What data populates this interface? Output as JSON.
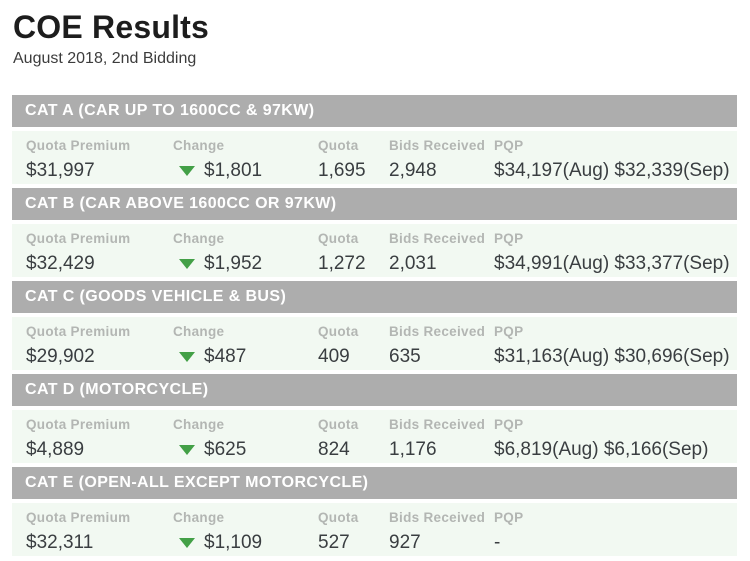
{
  "page": {
    "title": "COE Results",
    "subtitle": "August 2018, 2nd Bidding"
  },
  "columns": {
    "quota_premium": "Quota Premium",
    "change": "Change",
    "quota": "Quota",
    "bids_received": "Bids Received",
    "pqp": "PQP"
  },
  "colors": {
    "section_header_bg": "#adadad",
    "section_header_text": "#ffffff",
    "row_bg": "#f2f9f2",
    "label_text": "#b3b6b3",
    "value_text": "#3a3e41",
    "change_down_arrow": "#43a047"
  },
  "sections": [
    {
      "header": "CAT A (CAR UP TO 1600CC & 97KW)",
      "quota_premium": "$31,997",
      "change_direction": "down",
      "change": "$1,801",
      "quota": "1,695",
      "bids_received": "2,948",
      "pqp": "$34,197(Aug) $32,339(Sep)"
    },
    {
      "header": "CAT B (CAR ABOVE 1600CC OR 97KW)",
      "quota_premium": "$32,429",
      "change_direction": "down",
      "change": "$1,952",
      "quota": "1,272",
      "bids_received": "2,031",
      "pqp": "$34,991(Aug) $33,377(Sep)"
    },
    {
      "header": "CAT C (GOODS VEHICLE & BUS)",
      "quota_premium": "$29,902",
      "change_direction": "down",
      "change": "$487",
      "quota": "409",
      "bids_received": "635",
      "pqp": "$31,163(Aug) $30,696(Sep)"
    },
    {
      "header": "CAT D (MOTORCYCLE)",
      "quota_premium": "$4,889",
      "change_direction": "down",
      "change": "$625",
      "quota": "824",
      "bids_received": "1,176",
      "pqp": "$6,819(Aug) $6,166(Sep)"
    },
    {
      "header": "CAT E (OPEN-ALL EXCEPT MOTORCYCLE)",
      "quota_premium": "$32,311",
      "change_direction": "down",
      "change": "$1,109",
      "quota": "527",
      "bids_received": "927",
      "pqp": "-"
    }
  ]
}
